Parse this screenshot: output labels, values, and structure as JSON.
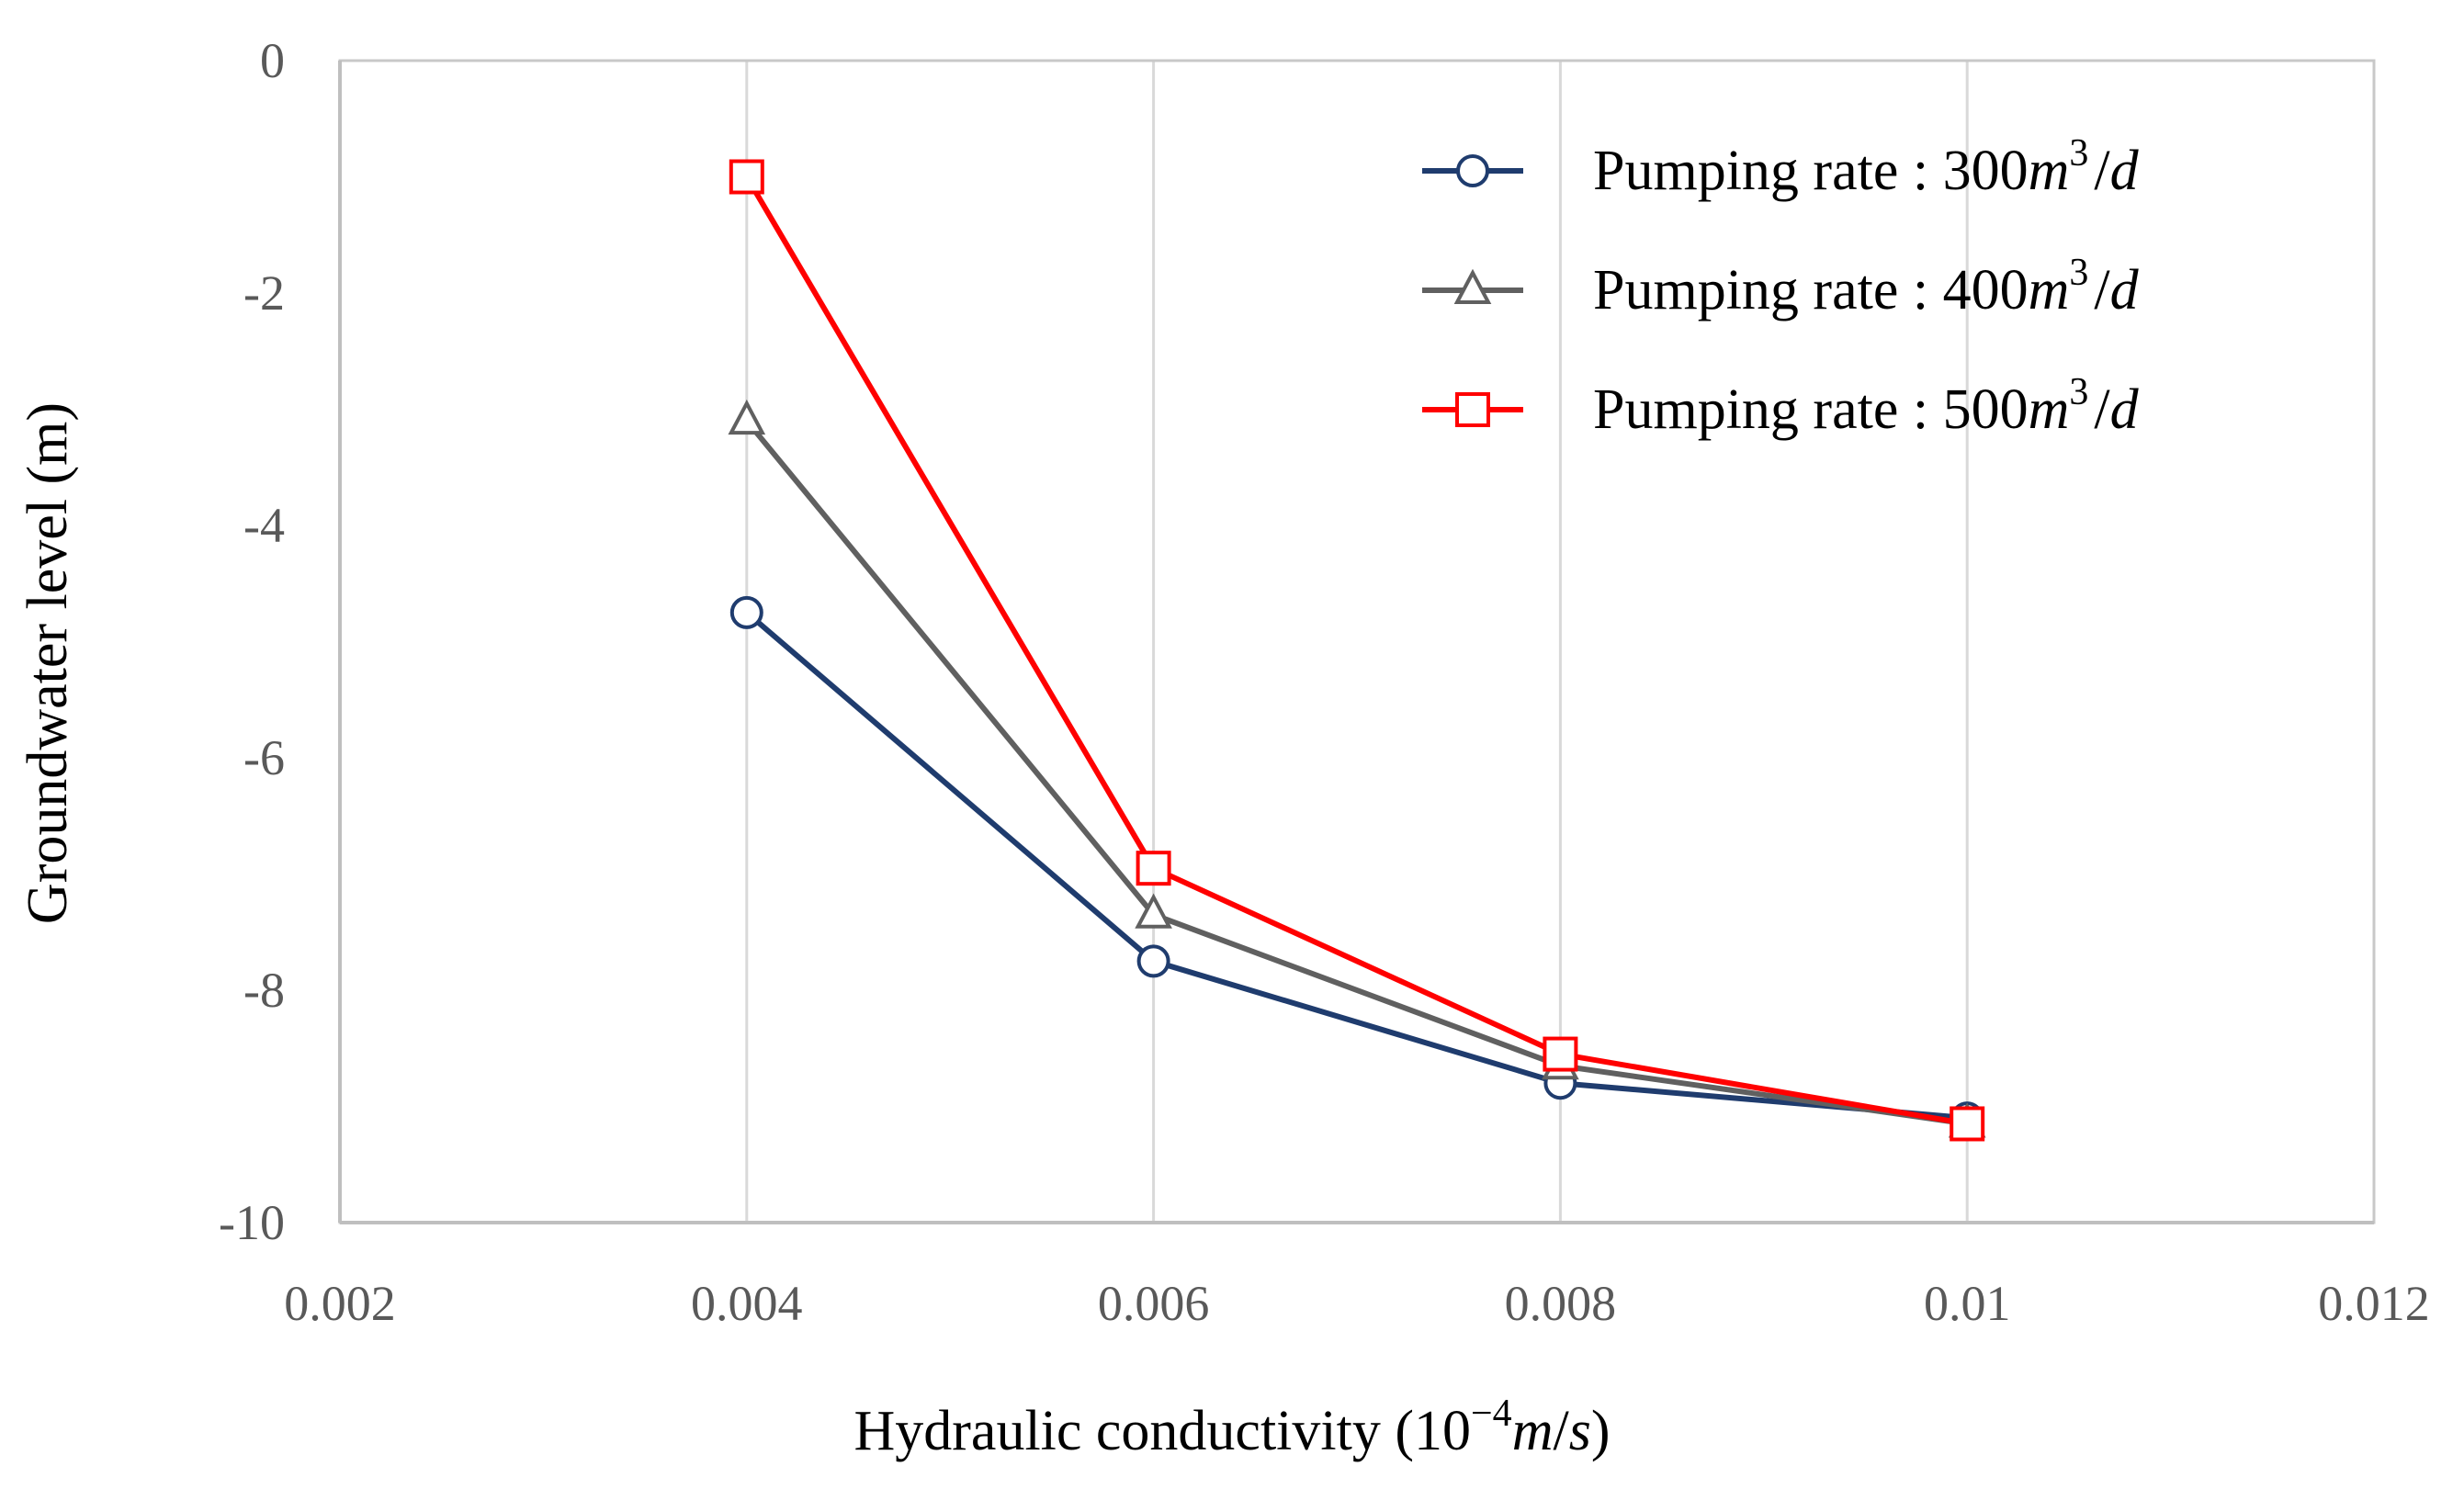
{
  "chart_data": {
    "type": "line",
    "title": "",
    "xlabel": "Hydraulic conductivity (10",
    "xlabel_exponent": "−4",
    "xlabel_unit": "m",
    "xlabel_slash": "/",
    "xlabel_time": "s",
    "xlabel_close": ")",
    "ylabel": "Groundwater level (m)",
    "xlim": [
      0.002,
      0.012
    ],
    "ylim": [
      -10,
      0
    ],
    "x_ticks": [
      "0.002",
      "0.004",
      "0.006",
      "0.008",
      "0.01",
      "0.012"
    ],
    "y_ticks": [
      "0",
      "-2",
      "-4",
      "-6",
      "-8",
      "-10"
    ],
    "grid": "vertical",
    "legend_position": "top-right",
    "x": [
      0.004,
      0.006,
      0.008,
      0.01
    ],
    "series": [
      {
        "name": "Pumping rate : 300m³/d",
        "label_prefix": "Pumping rate : 300",
        "label_m": "m",
        "label_exp": "3",
        "label_slash": "/",
        "label_d": "d",
        "marker": "circle",
        "color": "#1f3c6e",
        "values": [
          -4.75,
          -7.75,
          -8.8,
          -9.1
        ]
      },
      {
        "name": "Pumping rate : 400m³/d",
        "label_prefix": "Pumping rate : 400",
        "label_m": "m",
        "label_exp": "3",
        "label_slash": "/",
        "label_d": "d",
        "marker": "triangle",
        "color": "#606060",
        "values": [
          -3.1,
          -7.35,
          -8.65,
          -9.15
        ]
      },
      {
        "name": "Pumping rate : 500m³/d",
        "label_prefix": "Pumping rate : 500",
        "label_m": "m",
        "label_exp": "3",
        "label_slash": "/",
        "label_d": "d",
        "marker": "square",
        "color": "#ff0000",
        "values": [
          -1.0,
          -6.95,
          -8.55,
          -9.15
        ]
      }
    ]
  }
}
